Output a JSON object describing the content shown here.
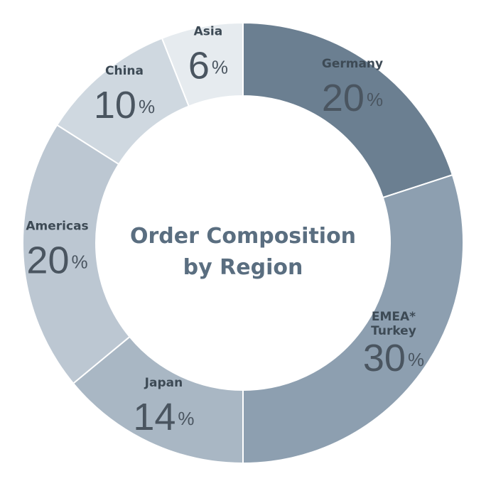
{
  "chart_data": {
    "type": "donut",
    "title": "Order Composition\nby Region",
    "categories": [
      "Germany",
      "EMEA*\nTurkey",
      "Japan",
      "Americas",
      "China",
      "Asia"
    ],
    "values": [
      20,
      30,
      14,
      20,
      10,
      6
    ],
    "value_labels": [
      "20%",
      "30%",
      "14%",
      "20%",
      "10%",
      "6%"
    ],
    "colors": [
      "#6b7f91",
      "#8d9fb0",
      "#a9b7c4",
      "#bcc7d2",
      "#cfd8e0",
      "#e6ebef"
    ]
  }
}
